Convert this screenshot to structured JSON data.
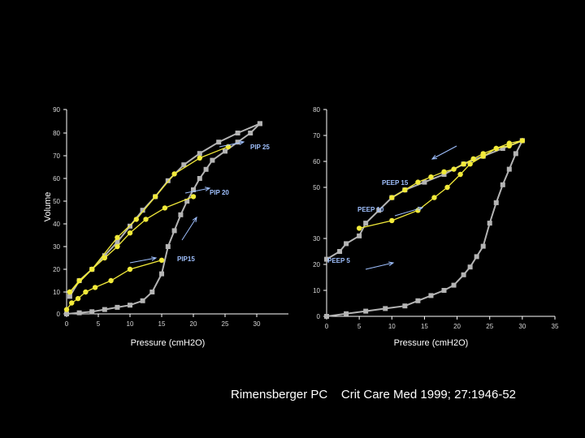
{
  "citation": "Rimensberger PC    Crit Care Med 1999; 27:1946-52",
  "colors": {
    "background": "#000000",
    "limb": "#b4b4b4",
    "loop": "#f2ea3a",
    "annotation": "#9fc0ff",
    "axis": "#ffffff"
  },
  "chart_data": [
    {
      "type": "line",
      "xlabel": "Pressure (cmH2O)",
      "ylabel": "Volume",
      "xlim": [
        0,
        35
      ],
      "ylim": [
        0,
        90
      ],
      "xticks": [
        "0",
        "5",
        "10",
        "15",
        "20",
        "25",
        "30"
      ],
      "yticks": [
        "0",
        "10",
        "20",
        "30",
        "40",
        "50",
        "60",
        "70",
        "80",
        "90"
      ],
      "annotations": [
        "PIP 25",
        "PIP 20",
        "PIP15"
      ],
      "series": [
        {
          "style": "gray",
          "x": [
            0,
            2,
            4,
            6,
            8,
            10,
            12,
            13.5,
            15,
            16,
            17,
            18,
            19,
            20,
            21,
            22,
            23,
            25,
            27,
            29,
            30.5
          ],
          "y": [
            0,
            0.5,
            1,
            2,
            3,
            4,
            6,
            10,
            18,
            30,
            37,
            44,
            50,
            55,
            60,
            64,
            68,
            72,
            76,
            80,
            84
          ]
        },
        {
          "style": "gray",
          "x": [
            30.5,
            27,
            24,
            21,
            18.5,
            16,
            14,
            12,
            10,
            8,
            6,
            4,
            2,
            0.5
          ],
          "y": [
            84,
            80,
            76,
            71,
            66,
            59,
            52,
            46,
            39,
            32,
            26,
            20,
            15,
            8
          ]
        },
        {
          "style": "yellow",
          "x": [
            0.5,
            4,
            8,
            11,
            14,
            17,
            21,
            25.5
          ],
          "y": [
            10,
            20,
            34,
            42,
            52,
            62,
            69,
            74
          ]
        },
        {
          "style": "yellow",
          "x": [
            0.5,
            2,
            4,
            6,
            8,
            10,
            12.5,
            15.5,
            20
          ],
          "y": [
            10,
            15,
            20,
            25,
            30,
            36,
            42,
            47,
            52
          ]
        },
        {
          "style": "yellow",
          "x": [
            0,
            0.8,
            1.8,
            3,
            4.5,
            7,
            10,
            15
          ],
          "y": [
            2,
            5,
            7,
            10,
            12,
            15,
            20,
            24
          ]
        }
      ]
    },
    {
      "type": "line",
      "xlabel": "Pressure (cmH2O)",
      "ylabel": "",
      "xlim": [
        0,
        35
      ],
      "ylim": [
        0,
        80
      ],
      "xticks": [
        "0",
        "5",
        "10",
        "15",
        "20",
        "25",
        "30",
        "35"
      ],
      "yticks": [
        "0",
        "10",
        "20",
        "30",
        "50",
        "60",
        "70",
        "80"
      ],
      "annotations": [
        "PEEP 15",
        "PEEP 10",
        "PEEP 5"
      ],
      "series": [
        {
          "style": "gray",
          "x": [
            0,
            3,
            6,
            9,
            12,
            14,
            16,
            18,
            19.5,
            21,
            22,
            23,
            24,
            25,
            26,
            27,
            28,
            29,
            30
          ],
          "y": [
            0,
            1,
            2,
            3,
            4,
            6,
            8,
            10,
            12,
            16,
            19,
            23,
            27,
            36,
            44,
            51,
            57,
            63,
            68
          ]
        },
        {
          "style": "gray",
          "x": [
            30,
            27,
            24,
            21,
            18,
            15,
            12,
            10,
            8,
            6,
            5,
            3,
            2,
            0
          ],
          "y": [
            68,
            65,
            62,
            59,
            55,
            52,
            49,
            46,
            41,
            36,
            31,
            28,
            25,
            22
          ]
        },
        {
          "style": "yellow",
          "x": [
            10,
            12,
            14,
            16,
            18,
            19.5,
            21,
            22.5,
            24,
            26,
            28,
            30
          ],
          "y": [
            46,
            49,
            52,
            54,
            56,
            57,
            59,
            61,
            63,
            65,
            66,
            68
          ]
        },
        {
          "style": "yellow",
          "x": [
            5,
            10,
            14,
            16.5,
            18.5,
            20.5,
            22,
            24,
            26,
            28,
            30
          ],
          "y": [
            34,
            37,
            41,
            46,
            50,
            55,
            59,
            62,
            65,
            67,
            68
          ]
        }
      ]
    }
  ]
}
